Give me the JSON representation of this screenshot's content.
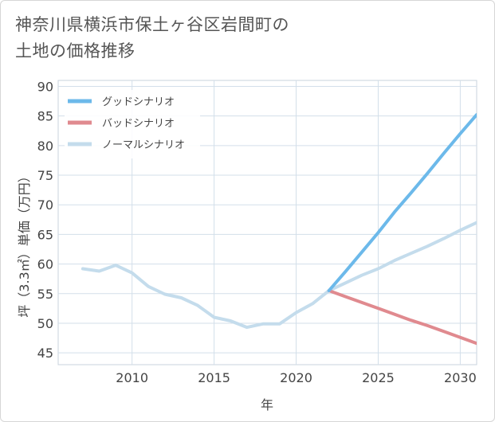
{
  "chart_data": {
    "type": "line",
    "title": "神奈川県横浜市保土ヶ谷区岩間町の\n土地の価格推移",
    "xlabel": "年",
    "ylabel": "坪（3.3㎡）単価（万円）",
    "xlim": [
      2005.5,
      2031
    ],
    "ylim": [
      43,
      91
    ],
    "x_ticks": [
      2010,
      2015,
      2020,
      2025,
      2030
    ],
    "x_tick_labels": [
      "2010",
      "2015",
      "2020",
      "2025",
      "2030"
    ],
    "y_ticks": [
      45,
      50,
      55,
      60,
      65,
      70,
      75,
      80,
      85,
      90
    ],
    "y_tick_labels": [
      "45",
      "50",
      "55",
      "60",
      "65",
      "70",
      "75",
      "80",
      "85",
      "90"
    ],
    "grid": true,
    "legend_position": "top-left",
    "series": [
      {
        "name": "グッドシナリオ",
        "color": "#6cb9ea",
        "x": [
          2022,
          2023,
          2024,
          2025,
          2026,
          2027,
          2028,
          2029,
          2030,
          2031
        ],
        "values": [
          55.5,
          58.7,
          62.0,
          65.3,
          68.8,
          72.0,
          75.3,
          78.7,
          82.0,
          85.2
        ]
      },
      {
        "name": "バッドシナリオ",
        "color": "#e08a8f",
        "x": [
          2022,
          2023,
          2024,
          2025,
          2026,
          2027,
          2028,
          2029,
          2030,
          2031
        ],
        "values": [
          55.5,
          54.5,
          53.5,
          52.5,
          51.5,
          50.5,
          49.6,
          48.6,
          47.6,
          46.6
        ]
      },
      {
        "name": "ノーマルシナリオ",
        "color": "#c4dcec",
        "x": [
          2007,
          2008,
          2009,
          2010,
          2011,
          2012,
          2013,
          2014,
          2015,
          2016,
          2017,
          2018,
          2019,
          2020,
          2021,
          2022,
          2023,
          2024,
          2025,
          2026,
          2027,
          2028,
          2029,
          2030,
          2031
        ],
        "values": [
          59.2,
          58.8,
          59.8,
          58.5,
          56.2,
          54.9,
          54.3,
          53.0,
          51.0,
          50.4,
          49.3,
          49.9,
          49.9,
          51.8,
          53.3,
          55.5,
          56.8,
          58.1,
          59.2,
          60.6,
          61.8,
          63.0,
          64.3,
          65.7,
          67.0
        ]
      }
    ]
  }
}
